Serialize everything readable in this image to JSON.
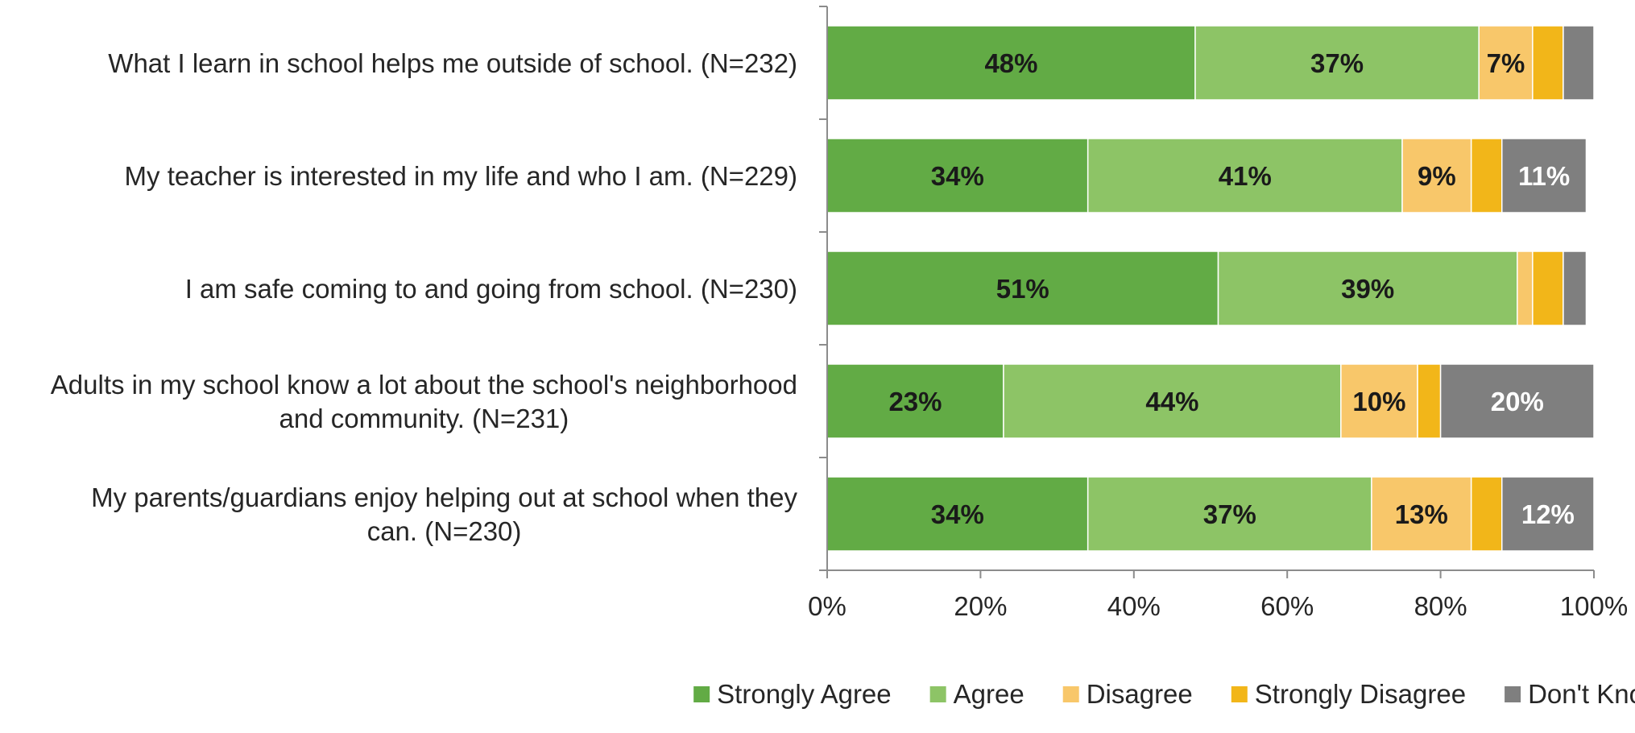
{
  "chart_data": {
    "type": "bar",
    "orientation": "horizontal",
    "stacked": true,
    "categories": [
      "What I learn in school helps me outside of school. (N=232)",
      "My teacher is interested in my life and who I am. (N=229)",
      "I am safe coming to and going from school. (N=230)",
      "Adults in my school know a lot about the school's neighborhood and community. (N=231)",
      "My parents/guardians enjoy helping out at school when they can. (N=230)"
    ],
    "category_lines": [
      [
        "What I learn in school helps me outside of school. (N=232)"
      ],
      [
        "My teacher is interested in my life and who I am. (N=229)"
      ],
      [
        "I am safe coming to and going from school. (N=230)"
      ],
      [
        "Adults in my school know a lot about the school's neighborhood",
        "and community. (N=231)"
      ],
      [
        "My parents/guardians enjoy helping out at school when they",
        "can. (N=230)"
      ]
    ],
    "series": [
      {
        "name": "Strongly Agree",
        "color": "#62AB45",
        "label_color": "#1a1a1a",
        "values": [
          48,
          34,
          51,
          23,
          34
        ]
      },
      {
        "name": "Agree",
        "color": "#8DC466",
        "label_color": "#1a1a1a",
        "values": [
          37,
          41,
          39,
          44,
          37
        ]
      },
      {
        "name": "Disagree",
        "color": "#F8C76A",
        "label_color": "#1a1a1a",
        "values": [
          7,
          9,
          2,
          10,
          13
        ]
      },
      {
        "name": "Strongly Disagree",
        "color": "#F2B619",
        "label_color": "#1a1a1a",
        "values": [
          4,
          4,
          4,
          3,
          4
        ]
      },
      {
        "name": "Don't Know",
        "color": "#7F7F7F",
        "label_color": "#ffffff",
        "values": [
          4,
          11,
          3,
          20,
          12
        ]
      }
    ],
    "data_labels": [
      [
        "48%",
        "37%",
        "7%",
        "",
        ""
      ],
      [
        "34%",
        "41%",
        "9%",
        "",
        "11%"
      ],
      [
        "51%",
        "39%",
        "",
        "",
        ""
      ],
      [
        "23%",
        "44%",
        "10%",
        "",
        "20%"
      ],
      [
        "34%",
        "37%",
        "13%",
        "",
        "12%"
      ]
    ],
    "xlim": [
      0,
      100
    ],
    "xticks": [
      0,
      20,
      40,
      60,
      80,
      100
    ],
    "xtick_labels": [
      "0%",
      "20%",
      "40%",
      "60%",
      "80%",
      "100%"
    ],
    "grid": false,
    "legend_position": "bottom"
  }
}
